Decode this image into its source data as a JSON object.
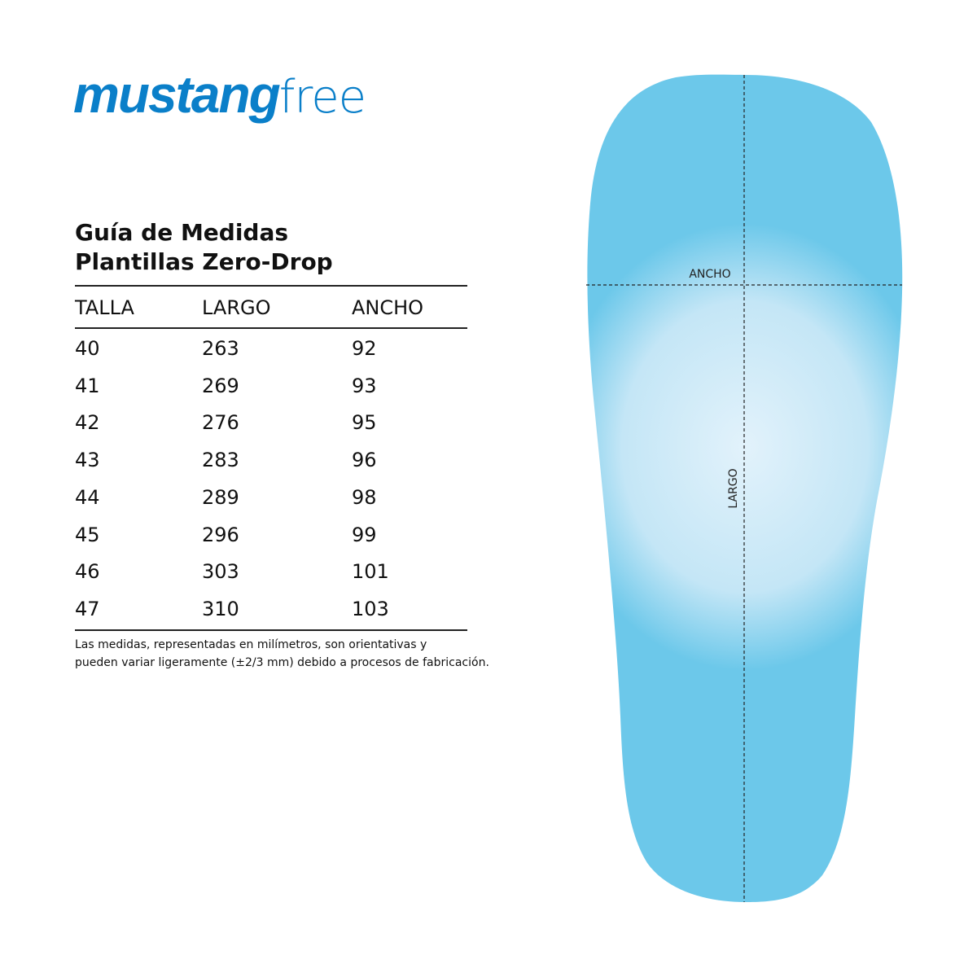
{
  "brand": {
    "bold": "mustang",
    "light": "free",
    "color": "#0a7fc9"
  },
  "title": {
    "line1": "Guía de Medidas",
    "line2": "Plantillas Zero-Drop"
  },
  "table": {
    "headers": [
      "TALLA",
      "LARGO",
      "ANCHO"
    ],
    "rows": [
      [
        "40",
        "263",
        "92"
      ],
      [
        "41",
        "269",
        "93"
      ],
      [
        "42",
        "276",
        "95"
      ],
      [
        "43",
        "283",
        "96"
      ],
      [
        "44",
        "289",
        "98"
      ],
      [
        "45",
        "296",
        "99"
      ],
      [
        "46",
        "303",
        "101"
      ],
      [
        "47",
        "310",
        "103"
      ]
    ]
  },
  "note": {
    "line1": "Las medidas, representadas en milímetros, son orientativas y",
    "line2": "pueden variar ligeramente (±2/3 mm) debido a procesos de fabricación."
  },
  "diagram": {
    "width_label": "ANCHO",
    "length_label": "LARGO",
    "insole_edge_color": "#6cc8ea",
    "insole_center_color": "#e2f2fb"
  }
}
